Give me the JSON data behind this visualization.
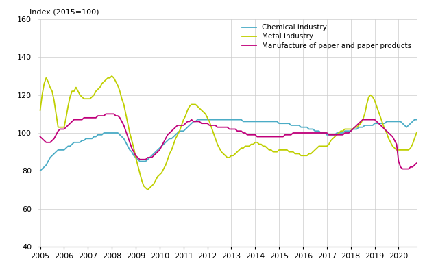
{
  "ylabel": "Index (2015=100)",
  "ylim": [
    40,
    160
  ],
  "yticks": [
    40,
    60,
    80,
    100,
    120,
    140,
    160
  ],
  "xlim": [
    2004.92,
    2020.75
  ],
  "xticks": [
    2005,
    2006,
    2007,
    2008,
    2009,
    2010,
    2011,
    2012,
    2013,
    2014,
    2015,
    2016,
    2017,
    2018,
    2019,
    2020
  ],
  "line_color_chemical": "#4BACC6",
  "line_color_metal": "#BFCF00",
  "line_color_paper": "#C0007A",
  "legend_labels": [
    "Chemical industry",
    "Metal industry",
    "Manufacture of paper and paper products"
  ],
  "chemical": {
    "x": [
      2005.0,
      2005.083,
      2005.167,
      2005.25,
      2005.333,
      2005.417,
      2005.5,
      2005.583,
      2005.667,
      2005.75,
      2005.833,
      2005.917,
      2006.0,
      2006.083,
      2006.167,
      2006.25,
      2006.333,
      2006.417,
      2006.5,
      2006.583,
      2006.667,
      2006.75,
      2006.833,
      2006.917,
      2007.0,
      2007.083,
      2007.167,
      2007.25,
      2007.333,
      2007.417,
      2007.5,
      2007.583,
      2007.667,
      2007.75,
      2007.833,
      2007.917,
      2008.0,
      2008.083,
      2008.167,
      2008.25,
      2008.333,
      2008.417,
      2008.5,
      2008.583,
      2008.667,
      2008.75,
      2008.833,
      2008.917,
      2009.0,
      2009.083,
      2009.167,
      2009.25,
      2009.333,
      2009.417,
      2009.5,
      2009.583,
      2009.667,
      2009.75,
      2009.833,
      2009.917,
      2010.0,
      2010.083,
      2010.167,
      2010.25,
      2010.333,
      2010.417,
      2010.5,
      2010.583,
      2010.667,
      2010.75,
      2010.833,
      2010.917,
      2011.0,
      2011.083,
      2011.167,
      2011.25,
      2011.333,
      2011.417,
      2011.5,
      2011.583,
      2011.667,
      2011.75,
      2011.833,
      2011.917,
      2012.0,
      2012.083,
      2012.167,
      2012.25,
      2012.333,
      2012.417,
      2012.5,
      2012.583,
      2012.667,
      2012.75,
      2012.833,
      2012.917,
      2013.0,
      2013.083,
      2013.167,
      2013.25,
      2013.333,
      2013.417,
      2013.5,
      2013.583,
      2013.667,
      2013.75,
      2013.833,
      2013.917,
      2014.0,
      2014.083,
      2014.167,
      2014.25,
      2014.333,
      2014.417,
      2014.5,
      2014.583,
      2014.667,
      2014.75,
      2014.833,
      2014.917,
      2015.0,
      2015.083,
      2015.167,
      2015.25,
      2015.333,
      2015.417,
      2015.5,
      2015.583,
      2015.667,
      2015.75,
      2015.833,
      2015.917,
      2016.0,
      2016.083,
      2016.167,
      2016.25,
      2016.333,
      2016.417,
      2016.5,
      2016.583,
      2016.667,
      2016.75,
      2016.833,
      2016.917,
      2017.0,
      2017.083,
      2017.167,
      2017.25,
      2017.333,
      2017.417,
      2017.5,
      2017.583,
      2017.667,
      2017.75,
      2017.833,
      2017.917,
      2018.0,
      2018.083,
      2018.167,
      2018.25,
      2018.333,
      2018.417,
      2018.5,
      2018.583,
      2018.667,
      2018.75,
      2018.833,
      2018.917,
      2019.0,
      2019.083,
      2019.167,
      2019.25,
      2019.333,
      2019.417,
      2019.5,
      2019.583,
      2019.667,
      2019.75,
      2019.833,
      2019.917,
      2020.0,
      2020.083,
      2020.167,
      2020.25,
      2020.333,
      2020.417,
      2020.5,
      2020.583,
      2020.667,
      2020.75
    ],
    "y": [
      80,
      81,
      82,
      83,
      85,
      87,
      88,
      89,
      90,
      91,
      91,
      91,
      91,
      92,
      93,
      93,
      94,
      95,
      95,
      95,
      95,
      96,
      96,
      97,
      97,
      97,
      97,
      98,
      98,
      99,
      99,
      99,
      100,
      100,
      100,
      100,
      100,
      100,
      100,
      100,
      99,
      98,
      97,
      95,
      93,
      91,
      90,
      88,
      87,
      86,
      85,
      85,
      85,
      85,
      86,
      87,
      88,
      89,
      90,
      91,
      92,
      93,
      94,
      95,
      96,
      97,
      97,
      98,
      99,
      100,
      101,
      101,
      101,
      102,
      103,
      104,
      105,
      106,
      106,
      107,
      107,
      107,
      107,
      107,
      107,
      107,
      107,
      107,
      107,
      107,
      107,
      107,
      107,
      107,
      107,
      107,
      107,
      107,
      107,
      107,
      107,
      107,
      106,
      106,
      106,
      106,
      106,
      106,
      106,
      106,
      106,
      106,
      106,
      106,
      106,
      106,
      106,
      106,
      106,
      106,
      105,
      105,
      105,
      105,
      105,
      105,
      104,
      104,
      104,
      104,
      104,
      103,
      103,
      103,
      103,
      102,
      102,
      102,
      101,
      101,
      101,
      100,
      100,
      100,
      99,
      99,
      99,
      99,
      99,
      100,
      100,
      100,
      100,
      101,
      101,
      101,
      101,
      102,
      102,
      102,
      103,
      103,
      103,
      104,
      104,
      104,
      104,
      104,
      105,
      105,
      105,
      105,
      105,
      105,
      106,
      106,
      106,
      106,
      106,
      106,
      106,
      106,
      105,
      104,
      103,
      104,
      105,
      106,
      107,
      107
    ]
  },
  "metal": {
    "x": [
      2005.0,
      2005.083,
      2005.167,
      2005.25,
      2005.333,
      2005.417,
      2005.5,
      2005.583,
      2005.667,
      2005.75,
      2005.833,
      2005.917,
      2006.0,
      2006.083,
      2006.167,
      2006.25,
      2006.333,
      2006.417,
      2006.5,
      2006.583,
      2006.667,
      2006.75,
      2006.833,
      2006.917,
      2007.0,
      2007.083,
      2007.167,
      2007.25,
      2007.333,
      2007.417,
      2007.5,
      2007.583,
      2007.667,
      2007.75,
      2007.833,
      2007.917,
      2008.0,
      2008.083,
      2008.167,
      2008.25,
      2008.333,
      2008.417,
      2008.5,
      2008.583,
      2008.667,
      2008.75,
      2008.833,
      2008.917,
      2009.0,
      2009.083,
      2009.167,
      2009.25,
      2009.333,
      2009.417,
      2009.5,
      2009.583,
      2009.667,
      2009.75,
      2009.833,
      2009.917,
      2010.0,
      2010.083,
      2010.167,
      2010.25,
      2010.333,
      2010.417,
      2010.5,
      2010.583,
      2010.667,
      2010.75,
      2010.833,
      2010.917,
      2011.0,
      2011.083,
      2011.167,
      2011.25,
      2011.333,
      2011.417,
      2011.5,
      2011.583,
      2011.667,
      2011.75,
      2011.833,
      2011.917,
      2012.0,
      2012.083,
      2012.167,
      2012.25,
      2012.333,
      2012.417,
      2012.5,
      2012.583,
      2012.667,
      2012.75,
      2012.833,
      2012.917,
      2013.0,
      2013.083,
      2013.167,
      2013.25,
      2013.333,
      2013.417,
      2013.5,
      2013.583,
      2013.667,
      2013.75,
      2013.833,
      2013.917,
      2014.0,
      2014.083,
      2014.167,
      2014.25,
      2014.333,
      2014.417,
      2014.5,
      2014.583,
      2014.667,
      2014.75,
      2014.833,
      2014.917,
      2015.0,
      2015.083,
      2015.167,
      2015.25,
      2015.333,
      2015.417,
      2015.5,
      2015.583,
      2015.667,
      2015.75,
      2015.833,
      2015.917,
      2016.0,
      2016.083,
      2016.167,
      2016.25,
      2016.333,
      2016.417,
      2016.5,
      2016.583,
      2016.667,
      2016.75,
      2016.833,
      2016.917,
      2017.0,
      2017.083,
      2017.167,
      2017.25,
      2017.333,
      2017.417,
      2017.5,
      2017.583,
      2017.667,
      2017.75,
      2017.833,
      2017.917,
      2018.0,
      2018.083,
      2018.167,
      2018.25,
      2018.333,
      2018.417,
      2018.5,
      2018.583,
      2018.667,
      2018.75,
      2018.833,
      2018.917,
      2019.0,
      2019.083,
      2019.167,
      2019.25,
      2019.333,
      2019.417,
      2019.5,
      2019.583,
      2019.667,
      2019.75,
      2019.833,
      2019.917,
      2020.0,
      2020.083,
      2020.167,
      2020.25,
      2020.333,
      2020.417,
      2020.5,
      2020.583,
      2020.667,
      2020.75
    ],
    "y": [
      112,
      120,
      126,
      129,
      127,
      124,
      122,
      117,
      110,
      103,
      103,
      103,
      103,
      108,
      114,
      119,
      122,
      122,
      124,
      122,
      120,
      119,
      118,
      118,
      118,
      118,
      119,
      120,
      122,
      123,
      124,
      126,
      127,
      128,
      129,
      129,
      130,
      129,
      127,
      125,
      122,
      118,
      115,
      110,
      105,
      100,
      96,
      92,
      87,
      83,
      79,
      75,
      72,
      71,
      70,
      71,
      72,
      73,
      75,
      77,
      78,
      79,
      81,
      83,
      86,
      89,
      91,
      94,
      97,
      99,
      101,
      104,
      107,
      109,
      112,
      114,
      115,
      115,
      115,
      114,
      113,
      112,
      111,
      110,
      108,
      106,
      103,
      100,
      97,
      94,
      92,
      90,
      89,
      88,
      87,
      87,
      88,
      88,
      89,
      90,
      91,
      92,
      92,
      93,
      93,
      93,
      94,
      94,
      95,
      95,
      94,
      94,
      93,
      93,
      92,
      91,
      91,
      90,
      90,
      90,
      91,
      91,
      91,
      91,
      91,
      90,
      90,
      90,
      89,
      89,
      89,
      88,
      88,
      88,
      88,
      89,
      89,
      90,
      91,
      92,
      93,
      93,
      93,
      93,
      93,
      94,
      96,
      97,
      98,
      99,
      100,
      101,
      101,
      102,
      102,
      102,
      102,
      102,
      103,
      103,
      104,
      105,
      107,
      110,
      115,
      119,
      120,
      119,
      117,
      114,
      111,
      108,
      105,
      102,
      100,
      97,
      95,
      93,
      92,
      91,
      91,
      91,
      91,
      91,
      91,
      91,
      92,
      94,
      97,
      100
    ]
  },
  "paper": {
    "x": [
      2005.0,
      2005.083,
      2005.167,
      2005.25,
      2005.333,
      2005.417,
      2005.5,
      2005.583,
      2005.667,
      2005.75,
      2005.833,
      2005.917,
      2006.0,
      2006.083,
      2006.167,
      2006.25,
      2006.333,
      2006.417,
      2006.5,
      2006.583,
      2006.667,
      2006.75,
      2006.833,
      2006.917,
      2007.0,
      2007.083,
      2007.167,
      2007.25,
      2007.333,
      2007.417,
      2007.5,
      2007.583,
      2007.667,
      2007.75,
      2007.833,
      2007.917,
      2008.0,
      2008.083,
      2008.167,
      2008.25,
      2008.333,
      2008.417,
      2008.5,
      2008.583,
      2008.667,
      2008.75,
      2008.833,
      2008.917,
      2009.0,
      2009.083,
      2009.167,
      2009.25,
      2009.333,
      2009.417,
      2009.5,
      2009.583,
      2009.667,
      2009.75,
      2009.833,
      2009.917,
      2010.0,
      2010.083,
      2010.167,
      2010.25,
      2010.333,
      2010.417,
      2010.5,
      2010.583,
      2010.667,
      2010.75,
      2010.833,
      2010.917,
      2011.0,
      2011.083,
      2011.167,
      2011.25,
      2011.333,
      2011.417,
      2011.5,
      2011.583,
      2011.667,
      2011.75,
      2011.833,
      2011.917,
      2012.0,
      2012.083,
      2012.167,
      2012.25,
      2012.333,
      2012.417,
      2012.5,
      2012.583,
      2012.667,
      2012.75,
      2012.833,
      2012.917,
      2013.0,
      2013.083,
      2013.167,
      2013.25,
      2013.333,
      2013.417,
      2013.5,
      2013.583,
      2013.667,
      2013.75,
      2013.833,
      2013.917,
      2014.0,
      2014.083,
      2014.167,
      2014.25,
      2014.333,
      2014.417,
      2014.5,
      2014.583,
      2014.667,
      2014.75,
      2014.833,
      2014.917,
      2015.0,
      2015.083,
      2015.167,
      2015.25,
      2015.333,
      2015.417,
      2015.5,
      2015.583,
      2015.667,
      2015.75,
      2015.833,
      2015.917,
      2016.0,
      2016.083,
      2016.167,
      2016.25,
      2016.333,
      2016.417,
      2016.5,
      2016.583,
      2016.667,
      2016.75,
      2016.833,
      2016.917,
      2017.0,
      2017.083,
      2017.167,
      2017.25,
      2017.333,
      2017.417,
      2017.5,
      2017.583,
      2017.667,
      2017.75,
      2017.833,
      2017.917,
      2018.0,
      2018.083,
      2018.167,
      2018.25,
      2018.333,
      2018.417,
      2018.5,
      2018.583,
      2018.667,
      2018.75,
      2018.833,
      2018.917,
      2019.0,
      2019.083,
      2019.167,
      2019.25,
      2019.333,
      2019.417,
      2019.5,
      2019.583,
      2019.667,
      2019.75,
      2019.833,
      2019.917,
      2020.0,
      2020.083,
      2020.167,
      2020.25,
      2020.333,
      2020.417,
      2020.5,
      2020.583,
      2020.667,
      2020.75
    ],
    "y": [
      98,
      97,
      96,
      95,
      95,
      95,
      96,
      97,
      99,
      101,
      102,
      102,
      102,
      103,
      104,
      105,
      106,
      107,
      107,
      107,
      107,
      107,
      108,
      108,
      108,
      108,
      108,
      108,
      108,
      109,
      109,
      109,
      109,
      110,
      110,
      110,
      110,
      110,
      109,
      109,
      108,
      106,
      104,
      101,
      98,
      95,
      92,
      90,
      88,
      87,
      86,
      86,
      86,
      86,
      87,
      87,
      87,
      88,
      89,
      90,
      91,
      93,
      95,
      97,
      99,
      100,
      101,
      102,
      103,
      104,
      104,
      104,
      104,
      105,
      106,
      106,
      107,
      106,
      106,
      106,
      106,
      105,
      105,
      105,
      105,
      104,
      104,
      104,
      104,
      103,
      103,
      103,
      103,
      103,
      103,
      102,
      102,
      102,
      102,
      101,
      101,
      101,
      100,
      100,
      99,
      99,
      99,
      99,
      99,
      98,
      98,
      98,
      98,
      98,
      98,
      98,
      98,
      98,
      98,
      98,
      98,
      98,
      98,
      99,
      99,
      99,
      99,
      100,
      100,
      100,
      100,
      100,
      100,
      100,
      100,
      100,
      100,
      100,
      100,
      100,
      100,
      100,
      100,
      100,
      100,
      99,
      99,
      99,
      99,
      99,
      99,
      99,
      99,
      100,
      100,
      100,
      101,
      102,
      103,
      104,
      105,
      106,
      107,
      107,
      107,
      107,
      107,
      107,
      107,
      106,
      105,
      104,
      103,
      102,
      101,
      100,
      99,
      98,
      96,
      94,
      85,
      82,
      81,
      81,
      81,
      81,
      82,
      82,
      83,
      84
    ]
  }
}
